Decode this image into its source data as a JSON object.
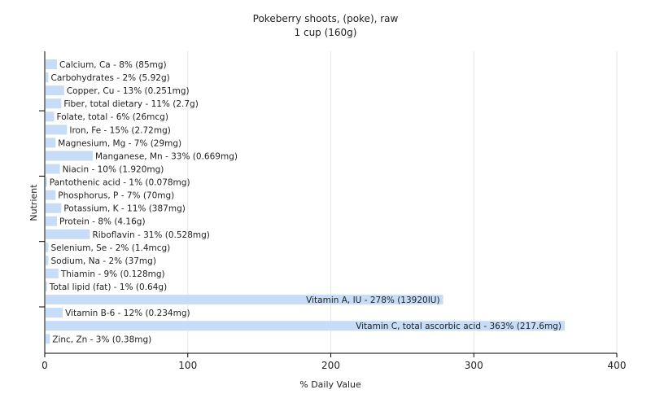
{
  "chart_data": {
    "type": "bar",
    "orientation": "horizontal",
    "title": "Pokeberry shoots, (poke), raw",
    "subtitle": "1 cup (160g)",
    "xlabel": "% Daily Value",
    "ylabel": "Nutrient",
    "xlim": [
      0,
      400
    ],
    "xticks": [
      0,
      100,
      200,
      300,
      400
    ],
    "grid": true,
    "bar_color": "#c6dcf7",
    "categories": [
      "Calcium, Ca",
      "Carbohydrates",
      "Copper, Cu",
      "Fiber, total dietary",
      "Folate, total",
      "Iron, Fe",
      "Magnesium, Mg",
      "Manganese, Mn",
      "Niacin",
      "Pantothenic acid",
      "Phosphorus, P",
      "Potassium, K",
      "Protein",
      "Riboflavin",
      "Selenium, Se",
      "Sodium, Na",
      "Thiamin",
      "Total lipid (fat)",
      "Vitamin A, IU",
      "Vitamin B-6",
      "Vitamin C, total ascorbic acid",
      "Zinc, Zn"
    ],
    "values": [
      8,
      2,
      13,
      11,
      6,
      15,
      7,
      33,
      10,
      1,
      7,
      11,
      8,
      31,
      2,
      2,
      9,
      1,
      278,
      12,
      363,
      3
    ],
    "labels": [
      "Calcium, Ca - 8% (85mg)",
      "Carbohydrates - 2% (5.92g)",
      "Copper, Cu - 13% (0.251mg)",
      "Fiber, total dietary - 11% (2.7g)",
      "Folate, total - 6% (26mcg)",
      "Iron, Fe - 15% (2.72mg)",
      "Magnesium, Mg - 7% (29mg)",
      "Manganese, Mn - 33% (0.669mg)",
      "Niacin - 10% (1.920mg)",
      "Pantothenic acid - 1% (0.078mg)",
      "Phosphorus, P - 7% (70mg)",
      "Potassium, K - 11% (387mg)",
      "Protein - 8% (4.16g)",
      "Riboflavin - 31% (0.528mg)",
      "Selenium, Se - 2% (1.4mcg)",
      "Sodium, Na - 2% (37mg)",
      "Thiamin - 9% (0.128mg)",
      "Total lipid (fat) - 1% (0.64g)",
      "Vitamin A, IU - 278% (13920IU)",
      "Vitamin B-6 - 12% (0.234mg)",
      "Vitamin C, total ascorbic acid - 363% (217.6mg)",
      "Zinc, Zn - 3% (0.38mg)"
    ]
  }
}
